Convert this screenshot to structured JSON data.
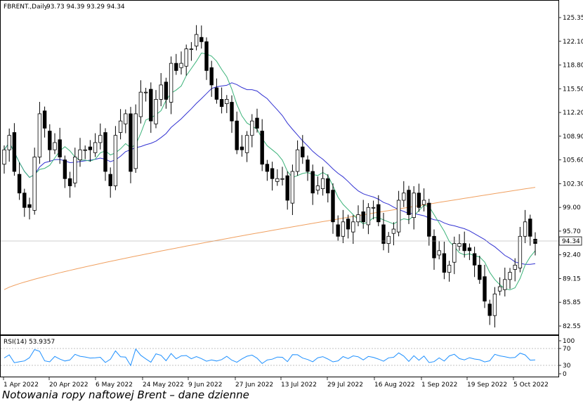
{
  "header": {
    "symbol": "FBRENT.,Daily",
    "ohlc": "93.73 94.39 93.29 94.34"
  },
  "rsi_label": "RSI(14) 53.9357",
  "caption": "Notowania ropy naftowej Brent – dane dzienne",
  "colors": {
    "background": "#ffffff",
    "candle": "#000000",
    "ma_fast": "#3cb37a",
    "ma_mid": "#3232d2",
    "ma_slow": "#f0a060",
    "rsi": "#1e90ff",
    "grid_level": "#c0c0c0",
    "price_line": "#a0a0a0"
  },
  "chart_data": [
    {
      "type": "candlestick",
      "title": "FBRENT.,Daily",
      "ylim": [
        81,
        127
      ],
      "y_ticks": [
        "125.35",
        "122.10",
        "118.80",
        "115.50",
        "112.20",
        "108.90",
        "105.60",
        "102.30",
        "99.00",
        "95.70",
        "92.40",
        "89.15",
        "85.85",
        "82.55"
      ],
      "x_ticks": [
        "1 Apr 2022",
        "20 Apr 2022",
        "6 May 2022",
        "24 May 2022",
        "9 Jun 2022",
        "27 Jun 2022",
        "13 Jul 2022",
        "29 Jul 2022",
        "16 Aug 2022",
        "1 Sep 2022",
        "19 Sep 2022",
        "5 Oct 2022"
      ],
      "current_price": "94.34",
      "closes": [
        107,
        109,
        104,
        101,
        99,
        99,
        106,
        112,
        110,
        107,
        108,
        106,
        103,
        102,
        106,
        107,
        107,
        107,
        108,
        109,
        104,
        102,
        109,
        111,
        112,
        104,
        112,
        115,
        115,
        111,
        114,
        116,
        114,
        119,
        118,
        119,
        121,
        121,
        123,
        122,
        118,
        116,
        114,
        113,
        114,
        111,
        107,
        107,
        109,
        111,
        110,
        105,
        104,
        103,
        103,
        103,
        100,
        104,
        107,
        106,
        104,
        101,
        102,
        103,
        101,
        97,
        95,
        97,
        96,
        97,
        98,
        97,
        99,
        99,
        97,
        94,
        95,
        96,
        100,
        101,
        98,
        101,
        99,
        100,
        95,
        92,
        93,
        90,
        91,
        94,
        94,
        93,
        93,
        91,
        89,
        86,
        84,
        87,
        88,
        89,
        90,
        91,
        95,
        97,
        95,
        94
      ]
    },
    {
      "type": "line",
      "title": "RSI(14)",
      "ylim": [
        0,
        100
      ],
      "y_ticks": [
        "100",
        "70",
        "30",
        "0"
      ],
      "current_value": "53.9357"
    }
  ]
}
